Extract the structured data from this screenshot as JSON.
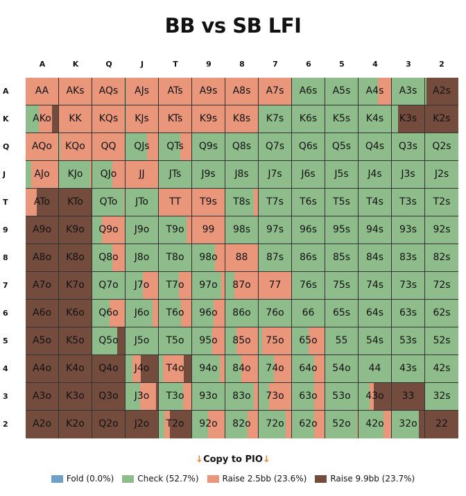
{
  "title": "BB vs SB LFI",
  "copy_label": "Copy to PIO",
  "arrow_glyph": "↓",
  "chart_data": {
    "type": "heatmap",
    "title": "BB vs SB LFI",
    "columns": [
      "A",
      "K",
      "Q",
      "J",
      "T",
      "9",
      "8",
      "7",
      "6",
      "5",
      "4",
      "3",
      "2"
    ],
    "rows": [
      "A",
      "K",
      "Q",
      "J",
      "T",
      "9",
      "8",
      "7",
      "6",
      "5",
      "4",
      "3",
      "2"
    ],
    "actions": [
      {
        "name": "Fold (0.0%)",
        "color": "#6fa0c8"
      },
      {
        "name": "Check (52.7%)",
        "color": "#8fbc8b"
      },
      {
        "name": "Raise 2.5bb (23.6%)",
        "color": "#e9967a"
      },
      {
        "name": "Raise 9.9bb (23.7%)",
        "color": "#744c3e"
      }
    ],
    "cell_format": "[hand, check%, raise2.5%, raise9.9%]",
    "grid": [
      [
        [
          "AA",
          0,
          100,
          0
        ],
        [
          "AKs",
          0,
          100,
          0
        ],
        [
          "AQs",
          0,
          100,
          0
        ],
        [
          "AJs",
          2,
          98,
          0
        ],
        [
          "ATs",
          0,
          100,
          0
        ],
        [
          "A9s",
          0,
          100,
          0
        ],
        [
          "A8s",
          0,
          100,
          0
        ],
        [
          "A7s",
          0,
          100,
          0
        ],
        [
          "A6s",
          100,
          0,
          0
        ],
        [
          "A5s",
          100,
          0,
          0
        ],
        [
          "A4s",
          60,
          40,
          0
        ],
        [
          "A3s",
          100,
          0,
          0
        ],
        [
          "A2s",
          5,
          0,
          95
        ]
      ],
      [
        [
          "AKo",
          40,
          40,
          20
        ],
        [
          "KK",
          0,
          100,
          0
        ],
        [
          "KQs",
          0,
          100,
          0
        ],
        [
          "KJs",
          2,
          98,
          0
        ],
        [
          "KTs",
          0,
          100,
          0
        ],
        [
          "K9s",
          0,
          100,
          0
        ],
        [
          "K8s",
          0,
          100,
          0
        ],
        [
          "K7s",
          100,
          0,
          0
        ],
        [
          "K6s",
          100,
          0,
          0
        ],
        [
          "K5s",
          100,
          0,
          0
        ],
        [
          "K4s",
          100,
          0,
          0
        ],
        [
          "K3s",
          20,
          0,
          80
        ],
        [
          "K2s",
          0,
          0,
          100
        ]
      ],
      [
        [
          "AQo",
          0,
          100,
          0
        ],
        [
          "KQo",
          5,
          95,
          0
        ],
        [
          "QQ",
          0,
          100,
          0
        ],
        [
          "QJs",
          66,
          34,
          0
        ],
        [
          "QTs",
          67,
          33,
          0
        ],
        [
          "Q9s",
          100,
          0,
          0
        ],
        [
          "Q8s",
          100,
          0,
          0
        ],
        [
          "Q7s",
          100,
          0,
          0
        ],
        [
          "Q6s",
          100,
          0,
          0
        ],
        [
          "Q5s",
          100,
          0,
          0
        ],
        [
          "Q4s",
          100,
          0,
          0
        ],
        [
          "Q3s",
          100,
          0,
          0
        ],
        [
          "Q2s",
          100,
          0,
          0
        ]
      ],
      [
        [
          "AJo",
          17,
          83,
          0
        ],
        [
          "KJo",
          95,
          5,
          0
        ],
        [
          "QJo",
          62,
          38,
          0
        ],
        [
          "JJ",
          0,
          100,
          0
        ],
        [
          "JTs",
          100,
          0,
          0
        ],
        [
          "J9s",
          100,
          0,
          0
        ],
        [
          "J8s",
          100,
          0,
          0
        ],
        [
          "J7s",
          100,
          0,
          0
        ],
        [
          "J6s",
          100,
          0,
          0
        ],
        [
          "J5s",
          100,
          0,
          0
        ],
        [
          "J4s",
          100,
          0,
          0
        ],
        [
          "J3s",
          100,
          0,
          0
        ],
        [
          "J2s",
          100,
          0,
          0
        ]
      ],
      [
        [
          "ATo",
          0,
          33,
          67
        ],
        [
          "KTo",
          0,
          0,
          100
        ],
        [
          "QTo",
          97,
          3,
          0
        ],
        [
          "JTo",
          100,
          0,
          0
        ],
        [
          "TT",
          0,
          100,
          0
        ],
        [
          "T9s",
          0,
          100,
          0
        ],
        [
          "T8s",
          88,
          12,
          0
        ],
        [
          "T7s",
          100,
          0,
          0
        ],
        [
          "T6s",
          100,
          0,
          0
        ],
        [
          "T5s",
          100,
          0,
          0
        ],
        [
          "T4s",
          100,
          0,
          0
        ],
        [
          "T3s",
          100,
          0,
          0
        ],
        [
          "T2s",
          100,
          0,
          0
        ]
      ],
      [
        [
          "A9o",
          0,
          0,
          100
        ],
        [
          "K9o",
          0,
          0,
          100
        ],
        [
          "Q9o",
          29,
          71,
          0
        ],
        [
          "J9o",
          100,
          0,
          0
        ],
        [
          "T9o",
          86,
          14,
          0
        ],
        [
          "99",
          0,
          100,
          0
        ],
        [
          "98s",
          100,
          0,
          0
        ],
        [
          "97s",
          100,
          0,
          0
        ],
        [
          "96s",
          100,
          0,
          0
        ],
        [
          "95s",
          100,
          0,
          0
        ],
        [
          "94s",
          100,
          0,
          0
        ],
        [
          "93s",
          100,
          0,
          0
        ],
        [
          "92s",
          100,
          0,
          0
        ]
      ],
      [
        [
          "A8o",
          0,
          0,
          100
        ],
        [
          "K8o",
          0,
          0,
          100
        ],
        [
          "Q8o",
          62,
          38,
          0
        ],
        [
          "J8o",
          100,
          0,
          0
        ],
        [
          "T8o",
          100,
          0,
          0
        ],
        [
          "98o",
          71,
          29,
          0
        ],
        [
          "88",
          0,
          100,
          0
        ],
        [
          "87s",
          100,
          0,
          0
        ],
        [
          "86s",
          100,
          0,
          0
        ],
        [
          "85s",
          100,
          0,
          0
        ],
        [
          "84s",
          100,
          0,
          0
        ],
        [
          "83s",
          100,
          0,
          0
        ],
        [
          "82s",
          100,
          0,
          0
        ]
      ],
      [
        [
          "A7o",
          0,
          0,
          100
        ],
        [
          "K7o",
          0,
          0,
          100
        ],
        [
          "Q7o",
          100,
          0,
          0
        ],
        [
          "J7o",
          54,
          46,
          0
        ],
        [
          "T7o",
          61,
          39,
          0
        ],
        [
          "97o",
          90,
          10,
          0
        ],
        [
          "87o",
          28,
          72,
          0
        ],
        [
          "77",
          0,
          100,
          0
        ],
        [
          "76s",
          100,
          0,
          0
        ],
        [
          "75s",
          100,
          0,
          0
        ],
        [
          "74s",
          100,
          0,
          0
        ],
        [
          "73s",
          100,
          0,
          0
        ],
        [
          "72s",
          100,
          0,
          0
        ]
      ],
      [
        [
          "A6o",
          0,
          0,
          100
        ],
        [
          "K6o",
          0,
          0,
          100
        ],
        [
          "Q6o",
          53,
          47,
          0
        ],
        [
          "J6o",
          83,
          17,
          0
        ],
        [
          "T6o",
          69,
          31,
          0
        ],
        [
          "96o",
          65,
          35,
          0
        ],
        [
          "86o",
          100,
          0,
          0
        ],
        [
          "76o",
          100,
          0,
          0
        ],
        [
          "66",
          100,
          0,
          0
        ],
        [
          "65s",
          100,
          0,
          0
        ],
        [
          "64s",
          100,
          0,
          0
        ],
        [
          "63s",
          100,
          0,
          0
        ],
        [
          "62s",
          100,
          0,
          0
        ]
      ],
      [
        [
          "A5o",
          0,
          0,
          100
        ],
        [
          "K5o",
          0,
          0,
          100
        ],
        [
          "Q5o",
          76,
          0,
          24
        ],
        [
          "J5o",
          100,
          0,
          0
        ],
        [
          "T5o",
          100,
          0,
          0
        ],
        [
          "95o",
          61,
          39,
          0
        ],
        [
          "85o",
          33,
          67,
          0
        ],
        [
          "75o",
          10,
          90,
          0
        ],
        [
          "65o",
          51,
          49,
          0
        ],
        [
          "55",
          100,
          0,
          0
        ],
        [
          "54s",
          100,
          0,
          0
        ],
        [
          "53s",
          100,
          0,
          0
        ],
        [
          "52s",
          100,
          0,
          0
        ]
      ],
      [
        [
          "A4o",
          0,
          0,
          100
        ],
        [
          "K4o",
          0,
          0,
          100
        ],
        [
          "Q4o",
          0,
          0,
          100
        ],
        [
          "J4o",
          21,
          26,
          53
        ],
        [
          "T4o",
          12,
          65,
          23
        ],
        [
          "94o",
          85,
          15,
          0
        ],
        [
          "84o",
          48,
          52,
          0
        ],
        [
          "74o",
          46,
          54,
          0
        ],
        [
          "64o",
          69,
          31,
          0
        ],
        [
          "54o",
          100,
          0,
          0
        ],
        [
          "44",
          100,
          0,
          0
        ],
        [
          "43s",
          100,
          0,
          0
        ],
        [
          "42s",
          100,
          0,
          0
        ]
      ],
      [
        [
          "A3o",
          0,
          0,
          100
        ],
        [
          "K3o",
          0,
          0,
          100
        ],
        [
          "Q3o",
          0,
          0,
          100
        ],
        [
          "J3o",
          44,
          50,
          6
        ],
        [
          "T3o",
          74,
          26,
          0
        ],
        [
          "93o",
          100,
          0,
          0
        ],
        [
          "83o",
          87,
          13,
          0
        ],
        [
          "73o",
          31,
          69,
          0
        ],
        [
          "63o",
          68,
          32,
          0
        ],
        [
          "53o",
          100,
          0,
          0
        ],
        [
          "43o",
          35,
          12,
          53
        ],
        [
          "33",
          0,
          0,
          100
        ],
        [
          "32s",
          100,
          0,
          0
        ]
      ],
      [
        [
          "A2o",
          0,
          0,
          100
        ],
        [
          "K2o",
          0,
          0,
          100
        ],
        [
          "Q2o",
          0,
          0,
          100
        ],
        [
          "J2o",
          0,
          0,
          100
        ],
        [
          "T2o",
          17,
          17,
          66
        ],
        [
          "92o",
          49,
          51,
          0
        ],
        [
          "82o",
          69,
          31,
          0
        ],
        [
          "72o",
          82,
          18,
          0
        ],
        [
          "62o",
          68,
          32,
          0
        ],
        [
          "52o",
          98,
          2,
          0
        ],
        [
          "42o",
          76,
          24,
          0
        ],
        [
          "32o",
          84,
          0,
          16
        ],
        [
          "22",
          0,
          0,
          100
        ]
      ]
    ]
  }
}
